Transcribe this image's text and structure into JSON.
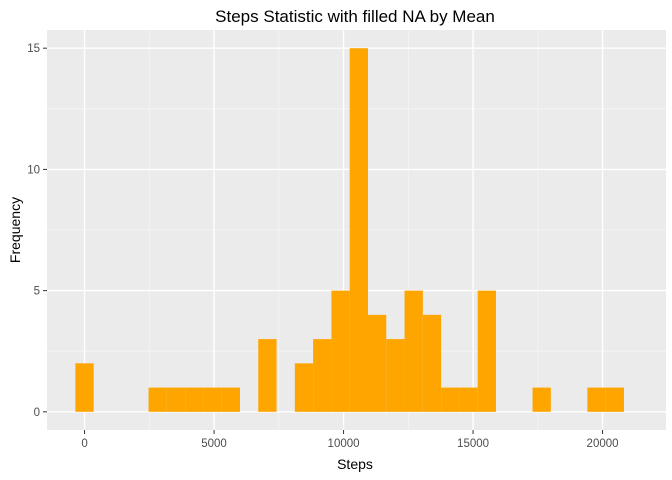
{
  "chart_data": {
    "type": "bar",
    "title": "Steps Statistic with filled NA by Mean",
    "xlabel": "Steps",
    "ylabel": "Frequency",
    "xlim": [
      -1450,
      22450
    ],
    "ylim": [
      -0.75,
      15.75
    ],
    "x_ticks": [
      0,
      5000,
      10000,
      15000,
      20000
    ],
    "x_tick_labels": [
      "0",
      "5000",
      "10000",
      "15000",
      "20000"
    ],
    "y_ticks": [
      0,
      5,
      10,
      15
    ],
    "y_tick_labels": [
      "0",
      "5",
      "10",
      "15"
    ],
    "grid": true,
    "legend": "none",
    "bin_width": 706,
    "bin_start": -353,
    "bin_counts": [
      2,
      0,
      0,
      0,
      1,
      1,
      1,
      1,
      1,
      0,
      3,
      0,
      2,
      3,
      5,
      15,
      4,
      3,
      5,
      4,
      1,
      1,
      5,
      0,
      0,
      1,
      0,
      0,
      1,
      1
    ],
    "colors": {
      "bar": "#FFA500",
      "panel": "#EBEBEB",
      "grid_major": "#FFFFFF",
      "grid_minor": "#F5F5F5",
      "tick": "#333333"
    }
  }
}
